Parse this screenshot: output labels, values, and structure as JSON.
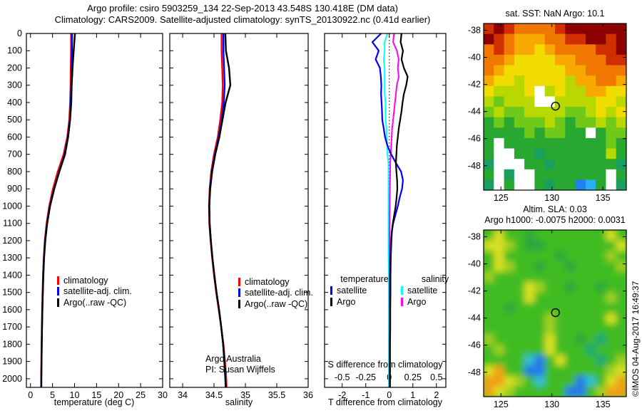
{
  "header": {
    "line1": "Argo profile: csiro 5903259_134 22-Sep-2013 43.548S 130.418E (DM data)",
    "line2": "Climatology: CARS2009. Satellite-adjusted climatology: synTS_20130922.nc (0.41d earlier)"
  },
  "credit": "©IMOS 04-Aug-2017 16:49:37",
  "chart_data": [
    {
      "type": "line",
      "id": "temperature-profile",
      "xlabel": "temperature (deg C)",
      "xlim": [
        -0.93,
        30
      ],
      "xticks": [
        0,
        5,
        10,
        15,
        20,
        25,
        30
      ],
      "ylim": [
        0,
        2050
      ],
      "ytick_step": 100,
      "ytick_labels": true,
      "depths": [
        0,
        100,
        200,
        300,
        400,
        500,
        600,
        700,
        800,
        900,
        1000,
        1100,
        1200,
        1300,
        1400,
        1500,
        1600,
        1700,
        1800,
        1900,
        2000,
        2050
      ],
      "series": [
        {
          "name": "climatology",
          "color": "#ff0000",
          "values": [
            9.2,
            9.2,
            9.15,
            9.1,
            9.0,
            8.8,
            8.35,
            7.5,
            6.2,
            5.1,
            4.25,
            3.65,
            3.25,
            3.0,
            2.85,
            2.75,
            2.65,
            2.58,
            2.52,
            2.47,
            2.43,
            2.42
          ]
        },
        {
          "name": "satellite-adj. clim.",
          "color": "#0000ff",
          "values": [
            9.45,
            9.4,
            9.35,
            9.25,
            9.15,
            8.95,
            8.5,
            7.75,
            6.5,
            5.35,
            4.4,
            3.75,
            3.32,
            3.06,
            2.9,
            2.79,
            2.69,
            2.61,
            2.55,
            2.5,
            2.46,
            2.45
          ]
        },
        {
          "name": "Argo(..raw -QC)",
          "color": "#000000",
          "values": [
            10.1,
            9.8,
            9.55,
            9.35,
            9.25,
            9.0,
            8.55,
            7.85,
            6.55,
            5.4,
            4.45,
            3.8,
            3.36,
            3.08,
            2.92,
            2.8,
            2.7,
            2.62,
            2.56,
            2.51,
            2.47,
            2.46
          ]
        }
      ],
      "legend": {
        "items": [
          {
            "label": "climatology",
            "color": "#ff0000"
          },
          {
            "label": "satellite-adj. clim.",
            "color": "#0000ff"
          },
          {
            "label": "Argo(..raw -QC)",
            "color": "#000000"
          }
        ]
      }
    },
    {
      "type": "line",
      "id": "salinity-profile",
      "xlabel": "salinity",
      "xlim": [
        33.795,
        36.0
      ],
      "xticks": [
        34,
        34.5,
        35,
        35.5,
        36
      ],
      "xtick_labels": [
        "34",
        "34.5",
        "35",
        "35.5",
        "36"
      ],
      "ylim": [
        0,
        2050
      ],
      "ytick_step": 100,
      "ytick_labels": false,
      "depths": [
        0,
        100,
        200,
        300,
        400,
        500,
        600,
        700,
        800,
        900,
        1000,
        1100,
        1200,
        1300,
        1400,
        1500,
        1600,
        1700,
        1800,
        1900,
        2000,
        2050
      ],
      "series": [
        {
          "name": "climatology",
          "color": "#ff0000",
          "values": [
            34.62,
            34.62,
            34.63,
            34.64,
            34.63,
            34.6,
            34.56,
            34.5,
            34.455,
            34.43,
            34.42,
            34.425,
            34.445,
            34.47,
            34.5,
            34.535,
            34.575,
            34.615,
            34.65,
            34.675,
            34.695,
            34.7
          ]
        },
        {
          "name": "satellite-adj. clim.",
          "color": "#0000ff",
          "values": [
            34.65,
            34.65,
            34.66,
            34.67,
            34.655,
            34.625,
            34.575,
            34.515,
            34.465,
            34.435,
            34.425,
            34.43,
            34.45,
            34.475,
            34.505,
            34.54,
            34.58,
            34.615,
            34.645,
            34.665,
            34.68,
            34.685
          ]
        },
        {
          "name": "Argo(..raw -QC)",
          "color": "#000000",
          "values": [
            34.68,
            34.69,
            34.74,
            34.76,
            34.685,
            34.635,
            34.585,
            34.52,
            34.47,
            34.44,
            34.425,
            34.43,
            34.45,
            34.475,
            34.505,
            34.54,
            34.58,
            34.615,
            34.645,
            34.665,
            34.68,
            34.69
          ]
        }
      ],
      "legend": {
        "items": [
          {
            "label": "climatology",
            "color": "#ff0000"
          },
          {
            "label": "satellite-adj. clim.",
            "color": "#0000ff"
          },
          {
            "label": "Argo(..raw -QC)",
            "color": "#000000"
          }
        ]
      },
      "annotation": {
        "line1": "Argo Australia",
        "line2": "PI: Susan Wijffels"
      }
    },
    {
      "type": "line",
      "id": "difference-profile",
      "xlabel": "T difference from climatology",
      "xlim": [
        -2.75,
        2.4
      ],
      "xticks": [
        -2,
        -1,
        0,
        1,
        2
      ],
      "ylim": [
        0,
        2050
      ],
      "ytick_step": 100,
      "ytick_labels": false,
      "zero_line": true,
      "inner_axis": {
        "label": "S difference from climatology",
        "ticks": [
          {
            "label": "-0.5",
            "x": -2
          },
          {
            "label": "-0.25",
            "x": -1
          },
          {
            "label": "0",
            "x": 0
          },
          {
            "label": "0.25",
            "x": 1
          },
          {
            "label": "0.5",
            "x": 2
          }
        ]
      },
      "depths": [
        0,
        50,
        100,
        150,
        200,
        250,
        300,
        350,
        400,
        450,
        500,
        550,
        600,
        650,
        700,
        750,
        800,
        850,
        900,
        950,
        1000,
        1050,
        1100,
        1150,
        1200,
        1300,
        1400,
        1500,
        1600,
        1700,
        1800,
        1900,
        2000,
        2050
      ],
      "series": [
        {
          "name": "S satellite diff",
          "color": "#00ffff",
          "scale": 4,
          "width": 2,
          "values": [
            -0.02,
            -0.05,
            -0.05,
            -0.06,
            -0.05,
            -0.05,
            -0.05,
            -0.05,
            -0.04,
            -0.04,
            -0.04,
            -0.03,
            -0.03,
            -0.02,
            -0.02,
            -0.01,
            -0.01,
            -0.01,
            -0.01,
            -0.01,
            -0.01,
            -0.01,
            -0.01,
            -0.01,
            -0.01,
            -0.01,
            -0.005,
            -0.005,
            -0.005,
            -0.005,
            -0.005,
            -0.005,
            -0.005,
            -0.005
          ]
        },
        {
          "name": "S Argo diff",
          "color": "#ff00ff",
          "scale": 4,
          "width": 2,
          "values": [
            0.05,
            0.04,
            0.08,
            0.1,
            0.09,
            0.1,
            0.08,
            0.07,
            0.06,
            0.05,
            0.04,
            0.03,
            0.025,
            0.02,
            0.015,
            0.01,
            0.01,
            0.008,
            0.006,
            0.005,
            0.004,
            0.003,
            0.003,
            0.002,
            0.002,
            0.002,
            0.001,
            0.001,
            0.001,
            0.001,
            0.001,
            0.001,
            0.001,
            0.001
          ]
        },
        {
          "name": "T satellite diff",
          "color": "#0000ff",
          "width": 2.2,
          "values": [
            -0.35,
            -0.72,
            -0.45,
            -0.58,
            -0.4,
            -0.36,
            -0.34,
            -0.35,
            -0.33,
            -0.31,
            -0.3,
            -0.24,
            -0.18,
            -0.08,
            0.08,
            0.28,
            0.5,
            0.58,
            0.54,
            0.44,
            0.36,
            0.26,
            0.16,
            0.1,
            0.07,
            0.05,
            0.04,
            0.03,
            0.03,
            0.03,
            0.02,
            0.02,
            0.02,
            0.02
          ]
        },
        {
          "name": "T Argo diff",
          "color": "#000000",
          "width": 2.2,
          "values": [
            0.52,
            0.48,
            0.58,
            0.52,
            0.62,
            0.78,
            0.72,
            0.62,
            0.56,
            0.52,
            0.46,
            0.4,
            0.36,
            0.32,
            0.3,
            0.28,
            0.3,
            0.33,
            0.34,
            0.31,
            0.27,
            0.21,
            0.15,
            0.11,
            0.09,
            0.06,
            0.05,
            0.05,
            0.04,
            0.04,
            0.03,
            0.03,
            0.03,
            0.03
          ]
        }
      ],
      "legend_diff": {
        "col1_header": "temperature",
        "col2_header": "salinity",
        "col1": [
          {
            "label": "satellite",
            "color": "#0000ff"
          },
          {
            "label": "Argo",
            "color": "#000000"
          }
        ],
        "col2": [
          {
            "label": "satellite",
            "color": "#00ffff"
          },
          {
            "label": "Argo",
            "color": "#ff00ff"
          }
        ]
      }
    },
    {
      "type": "heatmap",
      "id": "sst-map",
      "title": "sat. SST: NaN Argo: 10.1",
      "lonlim": [
        123.3,
        137.3
      ],
      "latlim": [
        -37.5,
        -49.8
      ],
      "xticks": [
        125,
        130,
        135
      ],
      "yticks": [
        -38,
        -40,
        -42,
        -44,
        -46,
        -48
      ],
      "marker": {
        "lon": 130.35,
        "lat": -43.6
      },
      "palette": {
        "M": "#8e0000",
        "r": "#d03000",
        "o": "#f07800",
        "a": "#f8a800",
        "y": "#f0dc00",
        "l": "#b8d800",
        "g": "#70c818",
        "G": "#28a830",
        "t": "#18a060",
        "w": "#ffffff",
        "b": "#2080f0",
        "B": "#28b0f0"
      },
      "rows": [
        "rMroooorMMMMMM",
        "MroaaaoorrMMrM",
        "oroaayaoooorrM",
        "ooayyyyaaooorr",
        "oayyyyyyaaoooo",
        "ayylyyyylaaooa",
        "ylllywlyllaayy",
        "lglllwwllllyyl",
        "glggllllgglyly",
        "GgGggglgGgglgl",
        "GGGGgGggGGwGgg",
        "GwGGGGGGGGGGgG",
        "GwwGGtGGGGGGlG",
        "twwwGGtGGGGGGt",
        "GwtwwGGGGGGGwG",
        "twGwwGtGGbBGwt"
      ]
    },
    {
      "type": "heatmap",
      "id": "sla-map",
      "title": "Altim. SLA: 0.03",
      "title2": "Argo h1000: -0.0075 h2000: 0.0031",
      "blur": true,
      "base": "G",
      "lonlim": [
        123.3,
        137.3
      ],
      "latlim": [
        -37.5,
        -49.8
      ],
      "xticks": [
        125,
        130,
        135
      ],
      "yticks": [
        -38,
        -40,
        -42,
        -44,
        -46,
        -48
      ],
      "marker": {
        "lon": 130.35,
        "lat": -43.6
      },
      "palette": {
        "G": "#40bc24",
        "d": "#2aa83c",
        "t": "#18a878",
        "y": "#d8e020",
        "l": "#a0d020",
        "o": "#f0a018",
        "b": "#2878e8",
        "c": "#30c0d0",
        "w": "#ffffff"
      },
      "rows": [
        "GyGGdGGGGGGGyG",
        "yylGddGGGGGGGy",
        "GyGGGGGdGGGGlG",
        "GylGGdGGdGGGGl",
        "lGGGGGGGGGGGGG",
        "GGGGylGGdGGdGG",
        "GGGGyGGGGGGGlG",
        "GGdGGGGGGGGGGG",
        "GGGGGGlGGGGGyG",
        "GGGGGGlGGGGGGG",
        "lGGGGGyGGdGtGG",
        "GlGGGGyGGGtGGG",
        "GGGGcbGyGGGtGl",
        "yoGGbbGGGGGGly",
        "ooylGcGGGbcGyo",
        "oylGGGGGbbGloo"
      ]
    }
  ]
}
